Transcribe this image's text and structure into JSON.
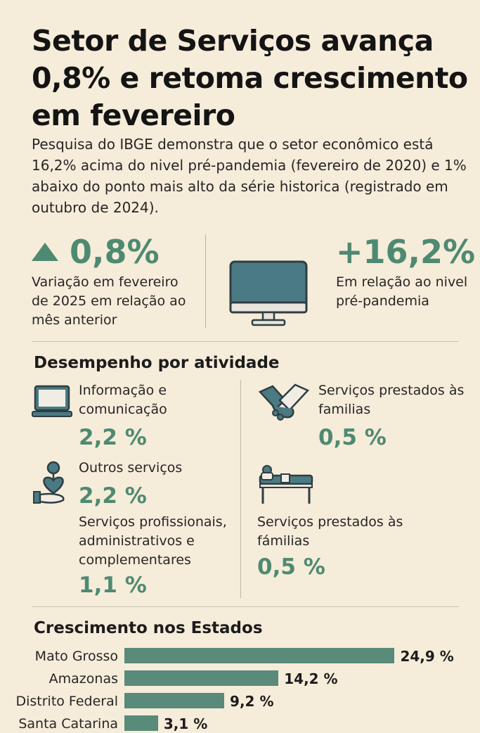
{
  "title": "Setor de Serviços avança 0,8% e retoma crescimento em fevereiro",
  "subtitle": "Pesquisa do IBGE demonstra que o setor econômico está 16,2% acima do nivel pré-pandemia (fevereiro de 2020) e 1% abaixo do ponto mais alto da série historica (registrado em outubro de 2024).",
  "kpi_monthly": {
    "value": "0,8%",
    "description": "Variação em fevereiro de 2025 em relação ao mês anterior",
    "icon": "triangle-up-icon"
  },
  "kpi_prepandemic": {
    "value": "+16,2%",
    "description": "Em relação ao nivel pré-pandemia"
  },
  "activities_section": {
    "title": "Desempenho por atividade",
    "items": [
      {
        "label": "Informação e comunicação",
        "value": "2,2 %",
        "icon": "laptop-icon"
      },
      {
        "label": "Serviços prestados às familias",
        "value": "0,5 %",
        "icon": "handshake-icon"
      },
      {
        "label": "Outros serviços",
        "value": "2,2 %",
        "icon": "hand-heart-icon"
      },
      {
        "label": "Serviços profissionais, administrativos e complementares",
        "value": "1,1 %",
        "icon": "none"
      },
      {
        "label": "Serviços prestados às fámilias",
        "value": "0,5 %",
        "icon": "bed-icon"
      }
    ]
  },
  "states_section": {
    "title": "Crescimento nos Estados"
  },
  "chart_data": {
    "type": "bar",
    "orientation": "horizontal",
    "title": "Crescimento nos Estados",
    "categories": [
      "Mato Grosso",
      "Amazonas",
      "Distrito Federal",
      "Santa Catarina"
    ],
    "values": [
      24.9,
      14.2,
      9.2,
      3.1
    ],
    "value_labels": [
      "24,9 %",
      "14,2 %",
      "9,2 %",
      "3,1 %"
    ],
    "unit": "%",
    "xlim": [
      0,
      25
    ],
    "bar_color": "#5a8a7a"
  },
  "colors": {
    "background": "#f6ecda",
    "accent_green": "#4e8a71",
    "icon_teal": "#4a7a83",
    "text": "#1f1f1f"
  }
}
